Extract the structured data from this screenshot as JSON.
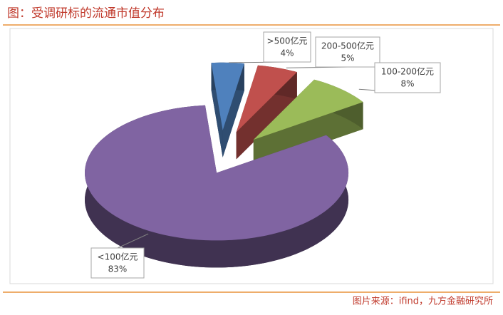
{
  "chart_data": {
    "type": "pie3d",
    "title": "图：受调研标的流通市值分布",
    "source": "图片来源：ifind，九方金融研究所",
    "categories": [
      ">500亿元",
      "200-500亿元",
      "100-200亿元",
      "<100亿元"
    ],
    "values": [
      4,
      5,
      8,
      83
    ],
    "value_labels": [
      "4%",
      "5%",
      "8%",
      "83%"
    ],
    "colors": [
      "#4f81bd",
      "#c0504d",
      "#9bbb59",
      "#8064a2"
    ]
  }
}
